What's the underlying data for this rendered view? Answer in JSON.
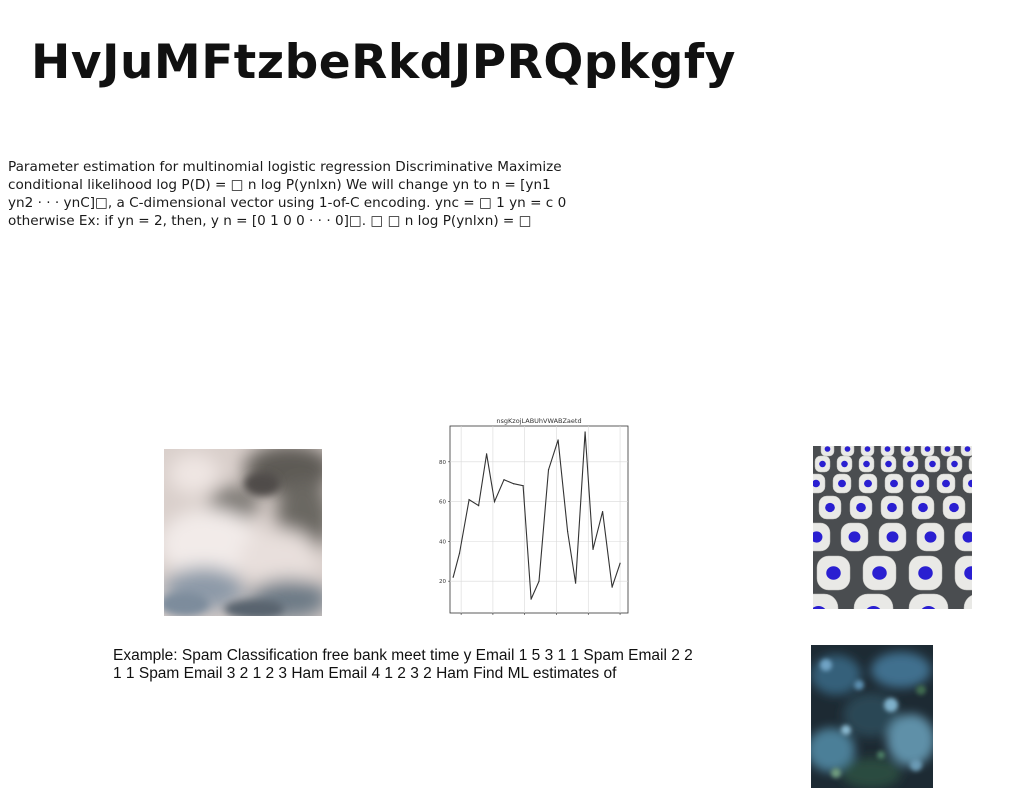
{
  "page": {
    "title": "HvJuMFtzbeRkdJPRQpkgfy",
    "paragraph_1": "Parameter estimation for multinomial logistic regression Discriminative Maximize conditional likelihood log P(D) = □ n log P(ynlxn) We will change yn to n = [yn1 yn2 · · · ynC]□, a C-dimensional vector using 1-of-C encoding. ync = □ 1 yn = c 0 otherwise Ex: if yn = 2, then, y n = [0 1 0 0 · · · 0]□. □ □ n log P(ynlxn) = □",
    "paragraph_2": "Example: Spam Classification free bank meet time y Email 1 5 3 1 1 Spam Email 2 2 1 1 Spam Email 3 2 1 2 3 Ham Email 4 1 2 3 2 Ham Find ML estimates of"
  },
  "images": [
    {
      "name": "fog-photo",
      "subject": "misty forest"
    },
    {
      "name": "seats-photo",
      "subject": "stadium seats"
    },
    {
      "name": "forest-photo",
      "subject": "aerial forest"
    }
  ],
  "colors": {
    "text": "#111111",
    "line": "#333333",
    "grid": "#d9d9d9",
    "seat": "#e9e9e6",
    "seat_badge": "#2a1fd1"
  },
  "chart_data": {
    "type": "line",
    "title": "nsgKzojLABUhVWABZaetd",
    "xlabel": "",
    "ylabel": "",
    "xlim": [
      -7,
      105
    ],
    "ylim": [
      4,
      98
    ],
    "xticks": [
      0,
      20,
      40,
      60,
      80,
      100
    ],
    "yticks": [
      20,
      40,
      60,
      80
    ],
    "grid": true,
    "x": [
      -5,
      -1,
      5,
      11,
      16,
      21,
      27,
      33,
      39,
      44,
      49,
      55,
      61,
      67,
      72,
      78,
      83,
      89,
      95,
      100
    ],
    "values": [
      22,
      34,
      61,
      58,
      84,
      60,
      71,
      69,
      68,
      11,
      20,
      76,
      91,
      45,
      19,
      95,
      36,
      55,
      17,
      29
    ]
  }
}
